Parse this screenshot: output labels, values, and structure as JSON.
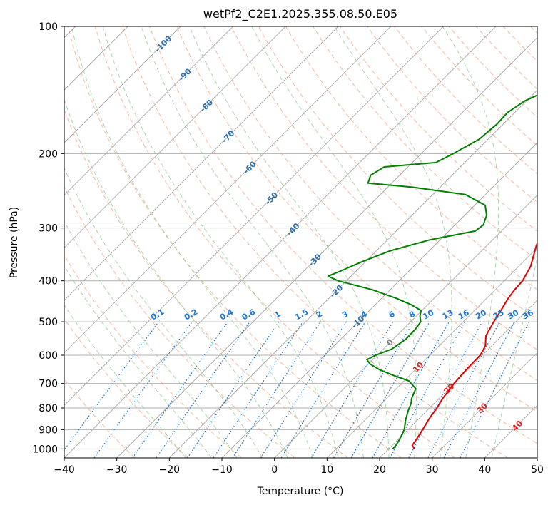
{
  "chart_data": {
    "type": "line",
    "diagram": "skew-T log-P",
    "title": "wetPf2_C2E1.2025.355.08.50.E05",
    "xlabel": "Temperature (°C)",
    "ylabel": "Pressure (hPa)",
    "xlim": [
      -40,
      50
    ],
    "ylim": [
      1050,
      100
    ],
    "x_ticks": [
      "−40",
      "−30",
      "−20",
      "−10",
      "0",
      "10",
      "20",
      "30",
      "40",
      "50"
    ],
    "x_tick_values": [
      -40,
      -30,
      -20,
      -10,
      0,
      10,
      20,
      30,
      40,
      50
    ],
    "y_ticks": [
      "100",
      "200",
      "300",
      "400",
      "500",
      "600",
      "700",
      "800",
      "900",
      "1000"
    ],
    "y_tick_values": [
      100,
      200,
      300,
      400,
      500,
      600,
      700,
      800,
      900,
      1000
    ],
    "grid": true,
    "colors": {
      "temperature": "#e00000",
      "dewpoint": "#008000",
      "isotherm": "#b0b0b0",
      "dry_adiabat": "#f4a582",
      "moist_adiabat": "#8fc98f",
      "mixing_ratio": "#1f77d4",
      "isotherm_label": "#2f6fa8",
      "dry_label": "#d62728"
    },
    "series": [
      {
        "name": "Temperature",
        "points": [
          [
            1000,
            24.9
          ],
          [
            980,
            23.8
          ],
          [
            950,
            23.5
          ],
          [
            900,
            22.8
          ],
          [
            850,
            22.0
          ],
          [
            800,
            21.4
          ],
          [
            760,
            20.7
          ],
          [
            700,
            20.0
          ],
          [
            650,
            19.7
          ],
          [
            600,
            19.6
          ],
          [
            570,
            18.8
          ],
          [
            540,
            17.0
          ],
          [
            500,
            15.8
          ],
          [
            470,
            15.0
          ],
          [
            440,
            14.1
          ],
          [
            420,
            13.7
          ],
          [
            400,
            13.5
          ],
          [
            370,
            12.3
          ],
          [
            350,
            10.9
          ],
          [
            330,
            9.4
          ],
          [
            310,
            8.1
          ],
          [
            290,
            7.7
          ],
          [
            270,
            8.0
          ],
          [
            250,
            9.2
          ],
          [
            230,
            10.3
          ],
          [
            210,
            11.2
          ],
          [
            190,
            10.8
          ],
          [
            170,
            9.7
          ],
          [
            150,
            7.8
          ],
          [
            135,
            6.3
          ],
          [
            125,
            6.6
          ],
          [
            115,
            7.8
          ],
          [
            105,
            8.9
          ],
          [
            100,
            9.6
          ]
        ]
      },
      {
        "name": "Dewpoint",
        "points": [
          [
            1000,
            20.8
          ],
          [
            980,
            20.7
          ],
          [
            950,
            20.3
          ],
          [
            900,
            19.3
          ],
          [
            850,
            17.6
          ],
          [
            810,
            16.4
          ],
          [
            780,
            15.6
          ],
          [
            760,
            14.8
          ],
          [
            720,
            13.7
          ],
          [
            690,
            10.9
          ],
          [
            670,
            7.0
          ],
          [
            650,
            3.3
          ],
          [
            630,
            0.4
          ],
          [
            615,
            -1.1
          ],
          [
            600,
            -0.3
          ],
          [
            580,
            1.6
          ],
          [
            550,
            2.4
          ],
          [
            520,
            2.3
          ],
          [
            500,
            1.9
          ],
          [
            485,
            0.7
          ],
          [
            470,
            -0.2
          ],
          [
            455,
            -3.3
          ],
          [
            440,
            -7.2
          ],
          [
            420,
            -13.4
          ],
          [
            400,
            -21.6
          ],
          [
            390,
            -24.4
          ],
          [
            380,
            -23.1
          ],
          [
            360,
            -20.6
          ],
          [
            340,
            -17.5
          ],
          [
            320,
            -12.0
          ],
          [
            305,
            -5.0
          ],
          [
            295,
            -4.6
          ],
          [
            280,
            -5.8
          ],
          [
            265,
            -8.0
          ],
          [
            250,
            -13.8
          ],
          [
            240,
            -25.5
          ],
          [
            235,
            -34.5
          ],
          [
            225,
            -35.5
          ],
          [
            215,
            -34.5
          ],
          [
            210,
            -25.5
          ],
          [
            200,
            -23.9
          ],
          [
            185,
            -21.7
          ],
          [
            170,
            -21.2
          ],
          [
            160,
            -21.4
          ],
          [
            150,
            -20.3
          ],
          [
            140,
            -17.4
          ],
          [
            130,
            -14.2
          ],
          [
            120,
            -12.0
          ],
          [
            110,
            -9.8
          ],
          [
            105,
            -8.1
          ],
          [
            100,
            -6.4
          ]
        ]
      }
    ],
    "isotherm_labels": [
      "-100",
      "-90",
      "-80",
      "-70",
      "-60",
      "-50",
      "-40",
      "-30",
      "-20",
      "-10"
    ],
    "dry_adiabat_labels": [
      "0",
      "10",
      "20",
      "30",
      "40"
    ],
    "mixing_ratio_labels": [
      "0.1",
      "0.2",
      "0.4",
      "0.6",
      "1",
      "1.5",
      "2",
      "3",
      "4",
      "6",
      "8",
      "10",
      "13",
      "16",
      "20",
      "25",
      "30",
      "36"
    ]
  }
}
